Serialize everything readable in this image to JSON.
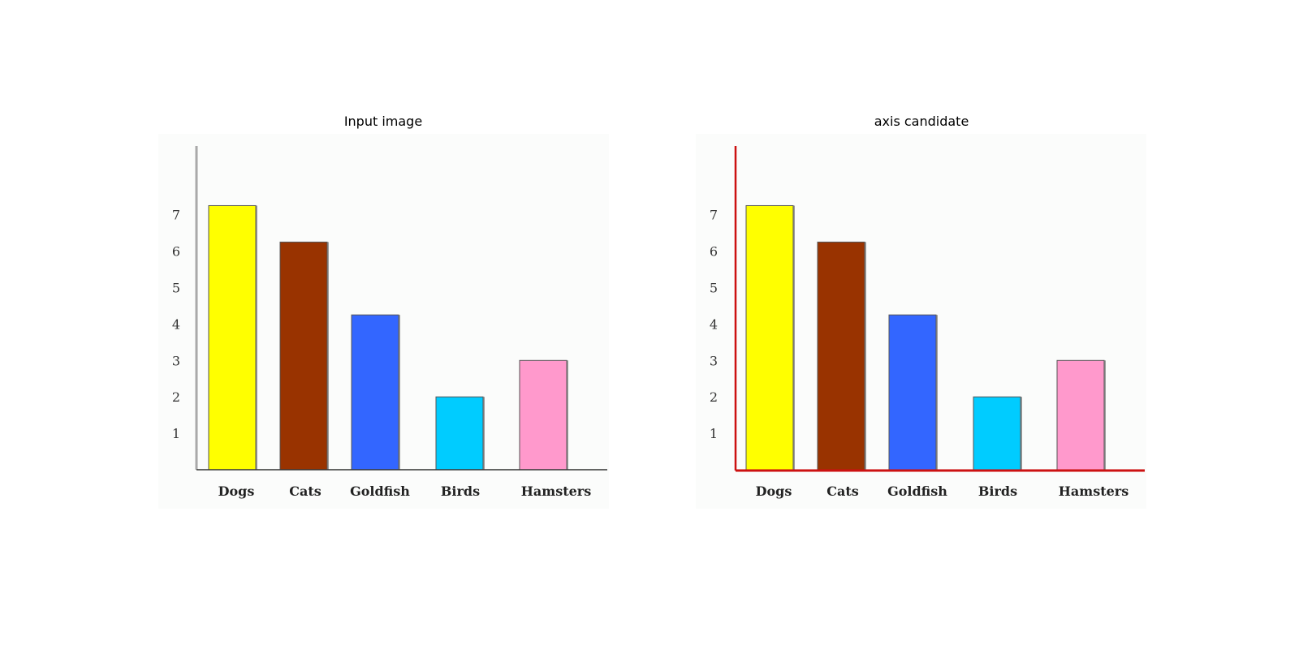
{
  "panels": [
    {
      "title": "Input image",
      "axis_color": "#777777",
      "axis_highlight": false
    },
    {
      "title": "axis candidate",
      "axis_color": "#cc1111",
      "axis_highlight": true
    }
  ],
  "chart_data": {
    "type": "bar",
    "categories": [
      "Dogs",
      "Cats",
      "Goldfish",
      "Birds",
      "Hamsters"
    ],
    "values": [
      7.25,
      6.25,
      4.25,
      2,
      3
    ],
    "colors": [
      "#ffff00",
      "#993300",
      "#3366ff",
      "#00ccff",
      "#ff99cc"
    ],
    "yticks": [
      1,
      2,
      3,
      4,
      5,
      6,
      7
    ],
    "ylim": [
      0,
      9
    ],
    "grid": false,
    "title": "",
    "xlabel": "",
    "ylabel": ""
  }
}
